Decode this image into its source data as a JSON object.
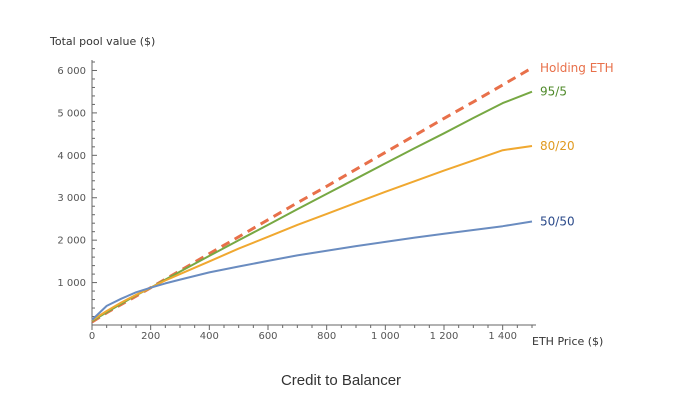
{
  "chart_data": {
    "type": "line",
    "title": "",
    "xlabel": "ETH Price ($)",
    "ylabel": "Total pool value ($)",
    "xlim": [
      0,
      1500
    ],
    "ylim": [
      0,
      6200
    ],
    "x_ticks": [
      0,
      200,
      400,
      600,
      800,
      1000,
      1200,
      1400
    ],
    "x_tick_labels": [
      "0",
      "200",
      "400",
      "600",
      "800",
      "1 000",
      "1 200",
      "1 400"
    ],
    "y_ticks": [
      1000,
      2000,
      3000,
      4000,
      5000,
      6000
    ],
    "y_tick_labels": [
      "1 000",
      "2 000",
      "3 000",
      "4 000",
      "5 000",
      "6 000"
    ],
    "x": [
      0,
      50,
      100,
      150,
      200,
      250,
      300,
      400,
      500,
      600,
      700,
      800,
      900,
      1000,
      1100,
      1200,
      1300,
      1400,
      1500
    ],
    "series": [
      {
        "name": "Holding ETH",
        "color": "#e8704a",
        "dash": true,
        "values": [
          70,
          290,
          485,
          680,
          880,
          1080,
          1280,
          1680,
          2080,
          2480,
          2880,
          3270,
          3670,
          4070,
          4470,
          4870,
          5260,
          5660,
          6060
        ]
      },
      {
        "name": "95/5",
        "color": "#77a843",
        "dash": false,
        "values": [
          90,
          300,
          500,
          700,
          880,
          1070,
          1260,
          1630,
          2000,
          2360,
          2730,
          3090,
          3450,
          3810,
          4170,
          4520,
          4880,
          5230,
          5500
        ]
      },
      {
        "name": "80/20",
        "color": "#f0a830",
        "dash": false,
        "values": [
          110,
          330,
          530,
          710,
          880,
          1050,
          1200,
          1500,
          1800,
          2080,
          2360,
          2620,
          2880,
          3140,
          3390,
          3640,
          3880,
          4120,
          4220
        ]
      },
      {
        "name": "50/50",
        "color": "#6a8cc0",
        "dash": false,
        "values": [
          120,
          450,
          620,
          770,
          880,
          980,
          1070,
          1240,
          1380,
          1510,
          1640,
          1750,
          1860,
          1960,
          2060,
          2150,
          2240,
          2330,
          2440
        ]
      }
    ],
    "legend": "inline-right"
  },
  "caption": "Credit to Balancer"
}
